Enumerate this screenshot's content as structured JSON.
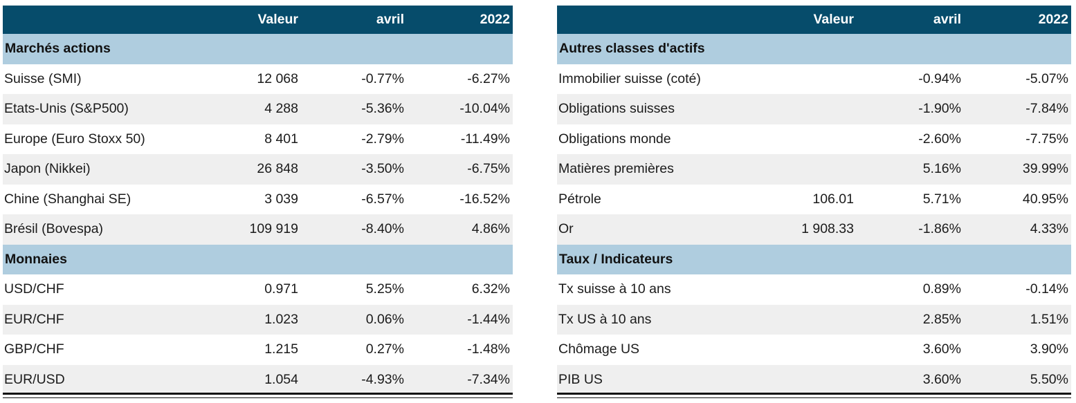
{
  "left": {
    "headers": [
      "",
      "Valeur",
      "avril",
      "2022"
    ],
    "sections": [
      {
        "title": "Marchés actions",
        "rows": [
          [
            "Suisse (SMI)",
            "12 068",
            "-0.77%",
            "-6.27%"
          ],
          [
            "Etats-Unis (S&P500)",
            "4 288",
            "-5.36%",
            "-10.04%"
          ],
          [
            "Europe (Euro Stoxx 50)",
            "8 401",
            "-2.79%",
            "-11.49%"
          ],
          [
            "Japon (Nikkei)",
            "26 848",
            "-3.50%",
            "-6.75%"
          ],
          [
            "Chine (Shanghai SE)",
            "3 039",
            "-6.57%",
            "-16.52%"
          ],
          [
            "Brésil (Bovespa)",
            "109 919",
            "-8.40%",
            "4.86%"
          ]
        ]
      },
      {
        "title": "Monnaies",
        "rows": [
          [
            "USD/CHF",
            "0.971",
            "5.25%",
            "6.32%"
          ],
          [
            "EUR/CHF",
            "1.023",
            "0.06%",
            "-1.44%"
          ],
          [
            "GBP/CHF",
            "1.215",
            "0.27%",
            "-1.48%"
          ],
          [
            "EUR/USD",
            "1.054",
            "-4.93%",
            "-7.34%"
          ]
        ]
      }
    ]
  },
  "right": {
    "headers": [
      "",
      "Valeur",
      "avril",
      "2022"
    ],
    "sections": [
      {
        "title": "Autres classes d'actifs",
        "rows": [
          [
            "Immobilier suisse (coté)",
            "",
            "-0.94%",
            "-5.07%"
          ],
          [
            "Obligations suisses",
            "",
            "-1.90%",
            "-7.84%"
          ],
          [
            "Obligations monde",
            "",
            "-2.60%",
            "-7.75%"
          ],
          [
            "Matières premières",
            "",
            "5.16%",
            "39.99%"
          ],
          [
            "Pétrole",
            "106.01",
            "5.71%",
            "40.95%"
          ],
          [
            "Or",
            "1 908.33",
            "-1.86%",
            "4.33%"
          ]
        ]
      },
      {
        "title": "Taux / Indicateurs",
        "rows": [
          [
            "Tx suisse à 10 ans",
            "",
            "0.89%",
            "-0.14%"
          ],
          [
            "Tx US à 10 ans",
            "",
            "2.85%",
            "1.51%"
          ],
          [
            "Chômage US",
            "",
            "3.60%",
            "3.90%"
          ],
          [
            "PIB US",
            "",
            "3.60%",
            "5.50%"
          ]
        ]
      }
    ]
  },
  "colors": {
    "header_bg": "#064c6b",
    "section_bg": "#afcddf",
    "row_alt_bg": "#efefef"
  }
}
